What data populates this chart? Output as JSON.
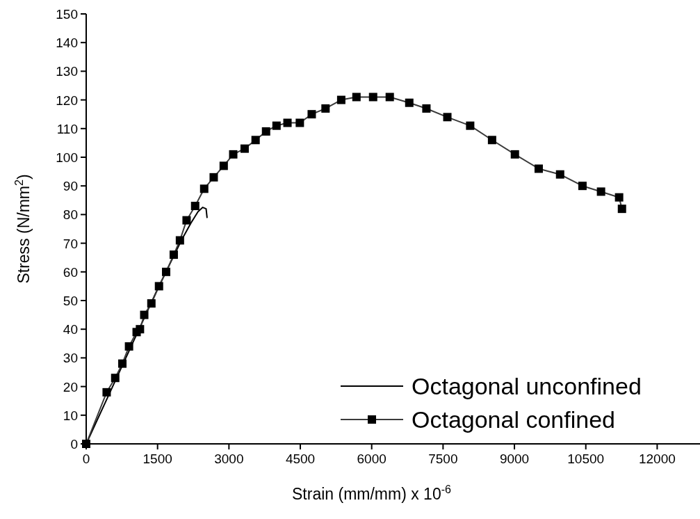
{
  "chart_data": {
    "type": "line",
    "xlabel": "Strain (mm/mm) x 10$^{-6}$",
    "ylabel": "Stress (N/mm$^{2}$)",
    "xlim": [
      0,
      12900
    ],
    "xticks": [
      0,
      1500,
      3000,
      4500,
      6000,
      7500,
      9000,
      10500,
      12000
    ],
    "ylim": [
      0,
      150
    ],
    "yticks": [
      0,
      10,
      20,
      30,
      40,
      50,
      60,
      70,
      80,
      90,
      100,
      110,
      120,
      130,
      140,
      150
    ],
    "grid": false,
    "legend": "bottom right",
    "series": [
      {
        "name": "Octagonal unconfined",
        "color": "#000000",
        "marker": "none",
        "line_style": "solid",
        "x": [
          0,
          500,
          1000,
          1500,
          2000,
          2200,
          2350,
          2450,
          2520,
          2540
        ],
        "values": [
          0,
          18,
          36,
          54,
          71,
          77,
          81,
          82.5,
          82,
          79
        ]
      },
      {
        "name": "Octagonal confined",
        "color": "#3a3a3a",
        "marker": "square",
        "line_style": "solid",
        "x": [
          0,
          430,
          610,
          760,
          900,
          1060,
          1130,
          1220,
          1370,
          1530,
          1680,
          1840,
          1970,
          2110,
          2290,
          2480,
          2680,
          2890,
          3090,
          3330,
          3560,
          3780,
          4000,
          4230,
          4490,
          4740,
          5030,
          5360,
          5680,
          6030,
          6380,
          6790,
          7150,
          7590,
          8070,
          8530,
          9010,
          9510,
          9960,
          10430,
          10820,
          11200,
          11260
        ],
        "values": [
          0,
          18,
          23,
          28,
          34,
          39,
          40,
          45,
          49,
          55,
          60,
          66,
          71,
          78,
          83,
          89,
          93,
          97,
          101,
          103,
          106,
          109,
          111,
          112,
          112,
          115,
          117,
          120,
          121,
          121,
          121,
          119,
          117,
          114,
          111,
          106,
          101,
          96,
          94,
          90,
          88,
          86,
          82
        ]
      }
    ]
  }
}
